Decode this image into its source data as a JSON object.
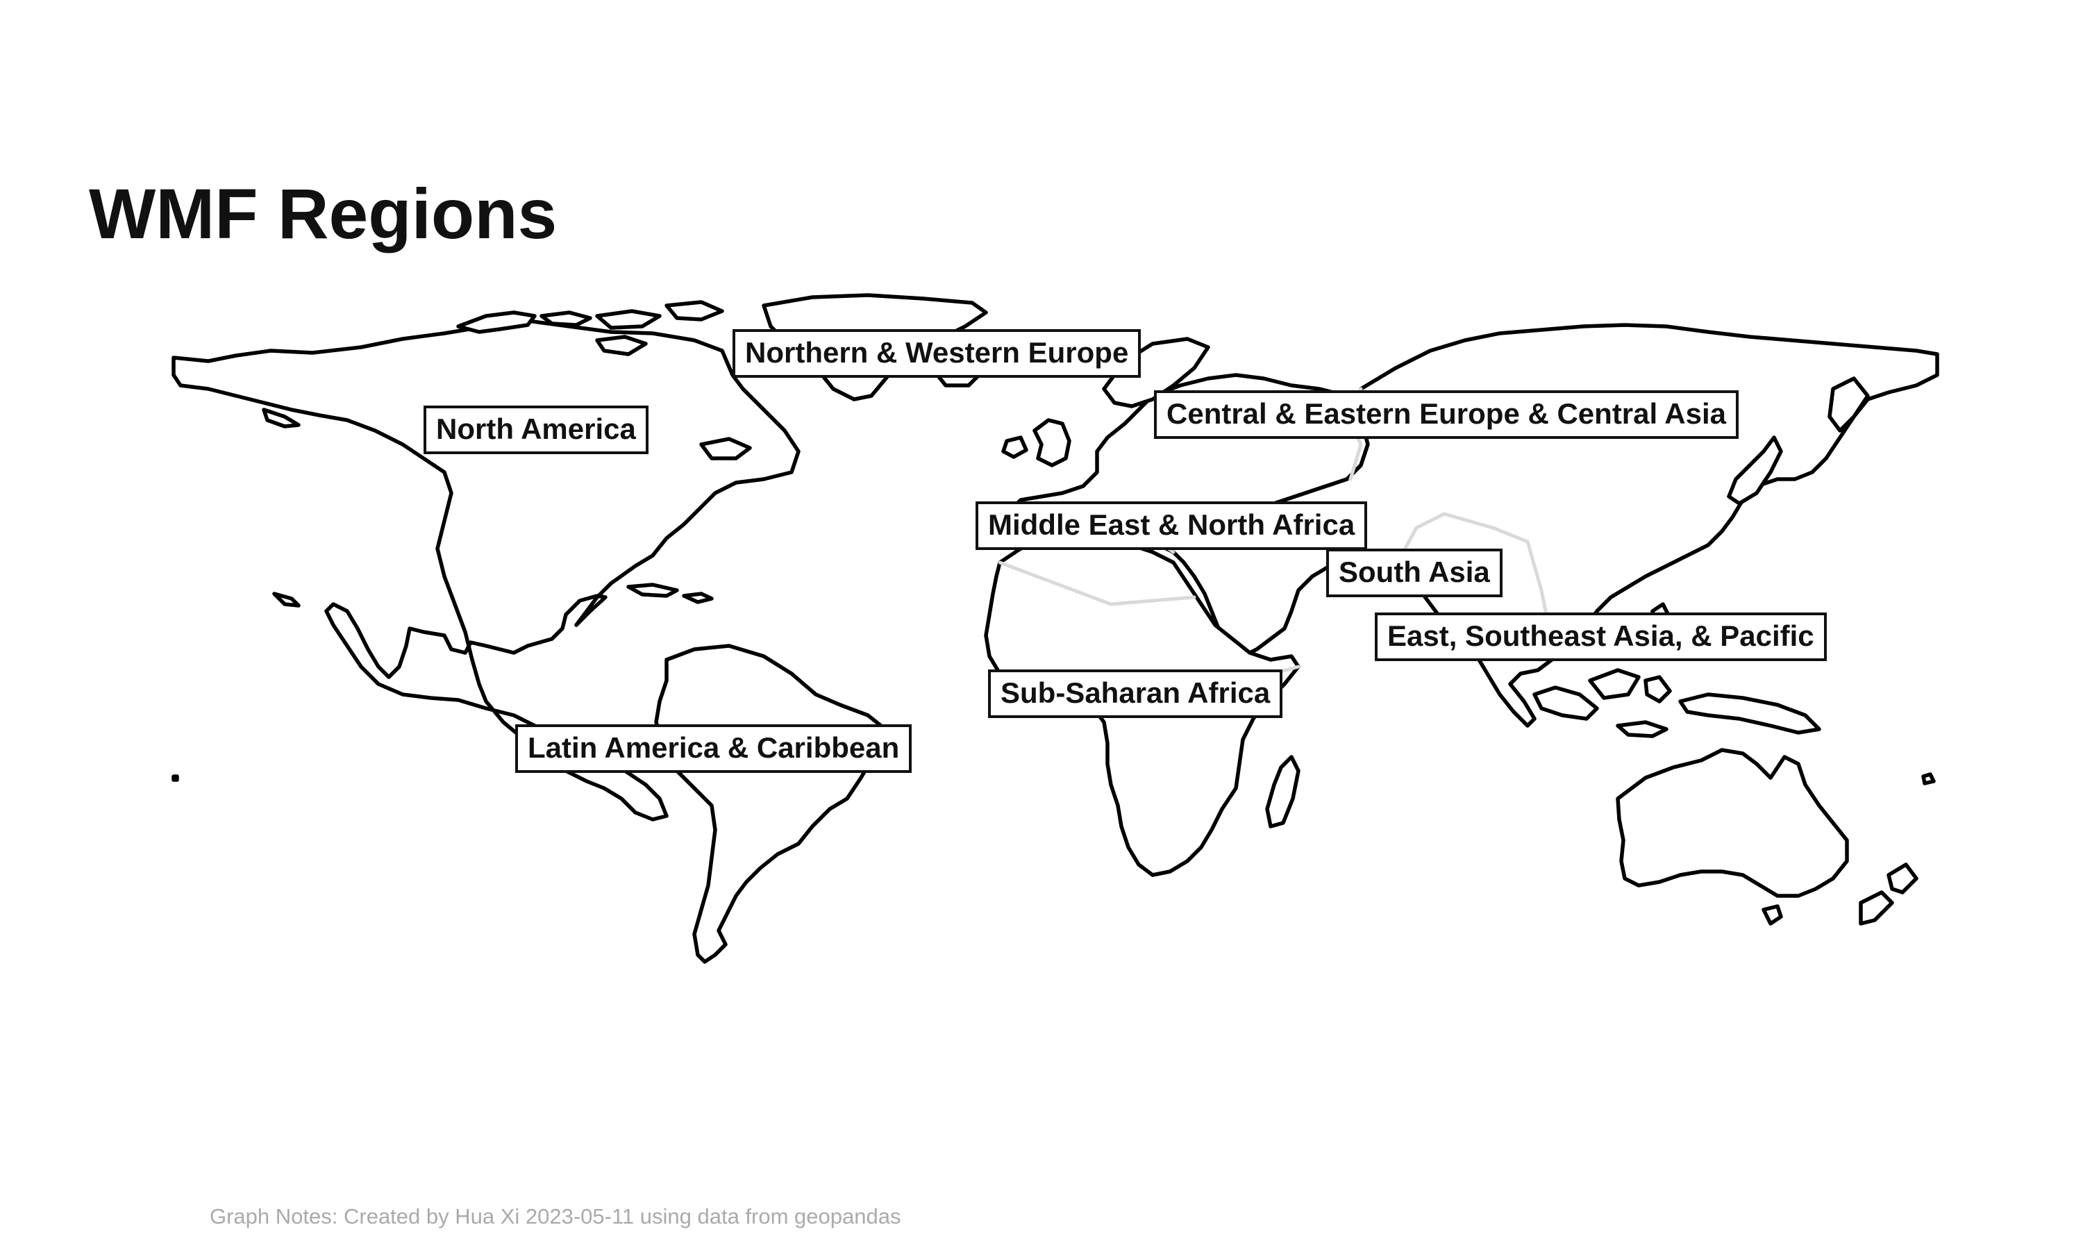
{
  "title": "WMF Regions",
  "notes": "Graph Notes: Created by Hua Xi 2023-05-11 using data from geopandas",
  "colors": {
    "land_fill": "#ffffff",
    "coastline": "#000000",
    "internal_borders": "#d9d9d9",
    "label_border": "#111111",
    "notes_text": "#aaaaaa"
  },
  "regions": [
    {
      "id": "northern-western-europe",
      "label": "Northern & Western Europe"
    },
    {
      "id": "north-america",
      "label": "North America"
    },
    {
      "id": "central-eastern-europe-central-asia",
      "label": "Central & Eastern Europe & Central Asia"
    },
    {
      "id": "middle-east-north-africa",
      "label": "Middle East & North Africa"
    },
    {
      "id": "south-asia",
      "label": "South Asia"
    },
    {
      "id": "east-southeast-asia-pacific",
      "label": "East, Southeast Asia, & Pacific"
    },
    {
      "id": "sub-saharan-africa",
      "label": "Sub-Saharan Africa"
    },
    {
      "id": "latin-america-caribbean",
      "label": "Latin America & Caribbean"
    }
  ]
}
